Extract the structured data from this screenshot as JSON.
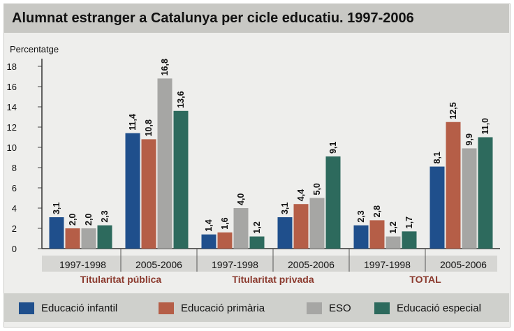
{
  "chart_data": {
    "type": "bar",
    "title": "Alumnat estranger a Catalunya per cicle educatiu. 1997-2006",
    "ylabel": "Percentatge",
    "ylim": [
      0,
      18
    ],
    "yticks": [
      0,
      2,
      4,
      6,
      8,
      10,
      12,
      14,
      16,
      18
    ],
    "grid": false,
    "legend_position": "bottom",
    "groups": [
      {
        "name": "Titularitat pública",
        "color": "#8b3a2e",
        "periods": [
          {
            "label": "1997-1998",
            "values": [
              3.1,
              2.0,
              2.0,
              2.3
            ],
            "labels": [
              "3,1",
              "2,0",
              "2,0",
              "2,3"
            ]
          },
          {
            "label": "2005-2006",
            "values": [
              11.4,
              10.8,
              16.8,
              13.6
            ],
            "labels": [
              "11,4",
              "10,8",
              "16,8",
              "13,6"
            ]
          }
        ]
      },
      {
        "name": "Titularitat privada",
        "color": "#8b3a2e",
        "periods": [
          {
            "label": "1997-1998",
            "values": [
              1.4,
              1.6,
              4.0,
              1.2
            ],
            "labels": [
              "1,4",
              "1,6",
              "4,0",
              "1,2"
            ]
          },
          {
            "label": "2005-2006",
            "values": [
              3.1,
              4.4,
              5.0,
              9.1
            ],
            "labels": [
              "3,1",
              "4,4",
              "5,0",
              "9,1"
            ]
          }
        ]
      },
      {
        "name": "TOTAL",
        "color": "#8b3a2e",
        "periods": [
          {
            "label": "1997-1998",
            "values": [
              2.3,
              2.8,
              1.2,
              1.7
            ],
            "labels": [
              "2,3",
              "2,8",
              "1,2",
              "1,7"
            ]
          },
          {
            "label": "2005-2006",
            "values": [
              8.1,
              12.5,
              9.9,
              11.0
            ],
            "labels": [
              "8,1",
              "12,5",
              "9,9",
              "11,0"
            ]
          }
        ]
      }
    ],
    "series": [
      {
        "name": "Educació infantil",
        "color": "#1f4f8c"
      },
      {
        "name": "Educació primària",
        "color": "#b55e47"
      },
      {
        "name": "ESO",
        "color": "#a6a6a4"
      },
      {
        "name": "Educació especial",
        "color": "#2d6a5d"
      }
    ]
  }
}
